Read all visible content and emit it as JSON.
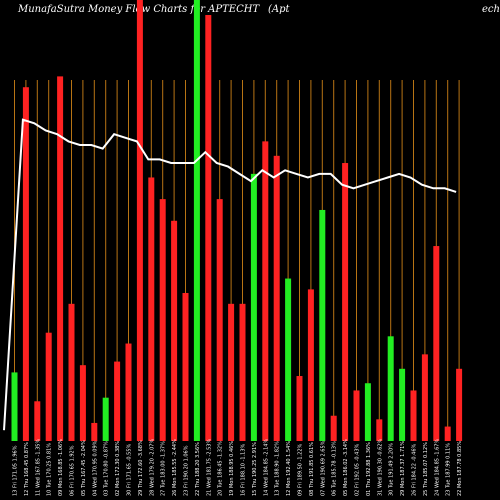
{
  "header": {
    "title": "MunafaSutra  Money Flow  Charts for APTECHT",
    "title_tail": "(Apt",
    "title_end": "ech L"
  },
  "chart_data": {
    "type": "bar",
    "value_range": [
      0,
      100
    ],
    "grid": "vertical",
    "colors": {
      "up": "#22ee22",
      "down": "#ff2222",
      "line": "#ffffff",
      "gridline": "#b87414",
      "background": "#000000"
    },
    "bars": [
      {
        "value": 19,
        "color": "up"
      },
      {
        "value": 98,
        "color": "down"
      },
      {
        "value": 11,
        "color": "down"
      },
      {
        "value": 30,
        "color": "down"
      },
      {
        "value": 101,
        "color": "down"
      },
      {
        "value": 38,
        "color": "down"
      },
      {
        "value": 21,
        "color": "down"
      },
      {
        "value": 5,
        "color": "down"
      },
      {
        "value": 12,
        "color": "up"
      },
      {
        "value": 22,
        "color": "down"
      },
      {
        "value": 27,
        "color": "down"
      },
      {
        "value": 128,
        "color": "down"
      },
      {
        "value": 73,
        "color": "down"
      },
      {
        "value": 67,
        "color": "down"
      },
      {
        "value": 61,
        "color": "down"
      },
      {
        "value": 41,
        "color": "down"
      },
      {
        "value": 130,
        "color": "up"
      },
      {
        "value": 118,
        "color": "down"
      },
      {
        "value": 67,
        "color": "down"
      },
      {
        "value": 38,
        "color": "down"
      },
      {
        "value": 38,
        "color": "down"
      },
      {
        "value": 74,
        "color": "up"
      },
      {
        "value": 83,
        "color": "down"
      },
      {
        "value": 79,
        "color": "down"
      },
      {
        "value": 45,
        "color": "up"
      },
      {
        "value": 18,
        "color": "down"
      },
      {
        "value": 42,
        "color": "down"
      },
      {
        "value": 64,
        "color": "up"
      },
      {
        "value": 7,
        "color": "down"
      },
      {
        "value": 77,
        "color": "down"
      },
      {
        "value": 14,
        "color": "down"
      },
      {
        "value": 16,
        "color": "up"
      },
      {
        "value": 6,
        "color": "down"
      },
      {
        "value": 29,
        "color": "up"
      },
      {
        "value": 20,
        "color": "up"
      },
      {
        "value": 14,
        "color": "down"
      },
      {
        "value": 24,
        "color": "down"
      },
      {
        "value": 54,
        "color": "down"
      },
      {
        "value": 4,
        "color": "down"
      },
      {
        "value": 20,
        "color": "down"
      }
    ],
    "line_values": [
      3,
      89,
      88,
      86,
      85,
      83,
      82,
      82,
      81,
      85,
      84,
      83,
      78,
      78,
      77,
      77,
      77,
      80,
      77,
      76,
      74,
      72,
      75,
      73,
      75,
      74,
      73,
      74,
      74,
      71,
      70,
      71,
      72,
      73,
      74,
      73,
      71,
      70,
      70,
      69
    ],
    "x_labels": [
      "13 Fri 171.05 1.96%",
      "12 Thu 168.45 0.87%",
      "11 Wed 167.85 -1.35%",
      "10 Tue 170.25 0.81%",
      "09 Mon 168.85 -1.06%",
      "06 Fri 170.65 1.92%",
      "05 Thu 167.45 -2.04%",
      "04 Wed 170.95 0.09%",
      "03 Tue 170.80 -0.87%",
      "02 Mon 172.30 0.38%",
      "30 Fri 171.65 -0.55%",
      "29 Thu 172.60 -3.68%",
      "28 Wed 179.20 -2.07%",
      "27 Tue 183.00 -1.37%",
      "26 Mon 185.55 -2.44%",
      "23 Fri 190.20 1.06%",
      "22 Thu 188.20 3.56%",
      "21 Wed 181.75 -2.53%",
      "20 Tue 186.45 -1.32%",
      "19 Mon 188.95 0.46%",
      "16 Fri 188.10 -1.13%",
      "15 Thu 190.25 2.91%",
      "14 Wed 184.85 -2.14%",
      "13 Tue 188.90 -1.82%",
      "12 Mon 192.40 1.54%",
      "09 Fri 189.50 -1.22%",
      "08 Thu 191.85 0.61%",
      "07 Wed 190.69 2.65%",
      "06 Tue 185.78 -0.13%",
      "05 Mon 186.02 -3.14%",
      "02 Fri 192.05 -0.43%",
      "01 Thu 192.88 1.36%",
      "31 Wed 190.30 -0.62%",
      "30 Tue 191.49 2.20%",
      "29 Mon 187.37 1.71%",
      "26 Fri 184.22 -0.46%",
      "25 Thu 185.07 0.12%",
      "24 Wed 184.85 -1.67%",
      "23 Tue 187.99 0.11%",
      "22 Mon 187.78 0.85%"
    ]
  }
}
